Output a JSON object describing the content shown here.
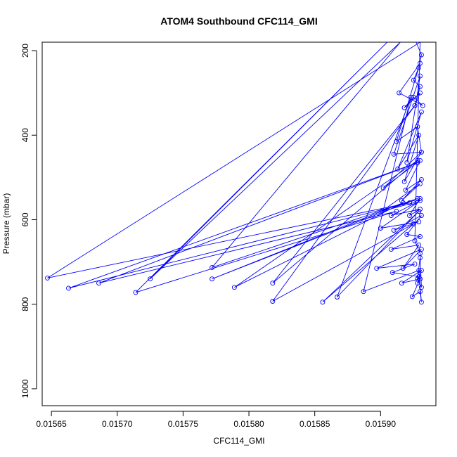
{
  "chart_data": {
    "type": "line",
    "title": "ATOM4 Southbound CFC114_GMI",
    "xlabel": "CFC114_GMI",
    "ylabel": "Pressure (mbar)",
    "xlim": [
      0.015643,
      0.015942
    ],
    "ylim": [
      1040,
      180
    ],
    "y_inverted": true,
    "x_ticks": [
      0.01565,
      0.0157,
      0.01575,
      0.0158,
      0.01585,
      0.0159
    ],
    "x_tick_labels": [
      "0.01565",
      "0.01570",
      "0.01575",
      "0.01580",
      "0.01585",
      "0.01590"
    ],
    "y_ticks": [
      200,
      400,
      600,
      800,
      1000
    ],
    "y_tick_labels": [
      "200",
      "400",
      "600",
      "800",
      "1000"
    ],
    "line_color": "#0000ff",
    "marker": "open-circle",
    "grid": false,
    "legend": "none",
    "series": [
      {
        "points": [
          [
            0.015927,
            180
          ],
          [
            0.015931,
            210
          ],
          [
            0.015929,
            240
          ],
          [
            0.015925,
            270
          ],
          [
            0.01593,
            285
          ],
          [
            0.015926,
            330
          ],
          [
            0.01593,
            300
          ],
          [
            0.015918,
            335
          ],
          [
            0.015925,
            310
          ],
          [
            0.015932,
            330
          ],
          [
            0.015914,
            300
          ],
          [
            0.01593,
            230
          ],
          [
            0.015912,
            415
          ],
          [
            0.015928,
            380
          ],
          [
            0.015931,
            440
          ],
          [
            0.01591,
            445
          ],
          [
            0.01593,
            260
          ],
          [
            0.01592,
            465
          ],
          [
            0.015931,
            345
          ],
          [
            0.015913,
            480
          ],
          [
            0.015929,
            400
          ],
          [
            0.015918,
            510
          ],
          [
            0.015931,
            440
          ],
          [
            0.015902,
            525
          ],
          [
            0.01593,
            460
          ],
          [
            0.015919,
            530
          ],
          [
            0.015931,
            505
          ],
          [
            0.015916,
            555
          ],
          [
            0.01593,
            515
          ],
          [
            0.015901,
            580
          ],
          [
            0.015925,
            560
          ],
          [
            0.01593,
            550
          ],
          [
            0.015922,
            590
          ],
          [
            0.01593,
            575
          ],
          [
            0.015908,
            590
          ],
          [
            0.01593,
            555
          ],
          [
            0.0159,
            620
          ],
          [
            0.015929,
            605
          ],
          [
            0.01591,
            625
          ],
          [
            0.015931,
            590
          ],
          [
            0.01592,
            635
          ],
          [
            0.01593,
            640
          ],
          [
            0.015908,
            670
          ],
          [
            0.015929,
            660
          ],
          [
            0.015917,
            715
          ],
          [
            0.015931,
            670
          ],
          [
            0.015897,
            715
          ],
          [
            0.015926,
            705
          ],
          [
            0.015909,
            725
          ],
          [
            0.015929,
            735
          ],
          [
            0.015928,
            750
          ],
          [
            0.015931,
            720
          ],
          [
            0.015916,
            750
          ],
          [
            0.01593,
            740
          ],
          [
            0.015924,
            782
          ],
          [
            0.01593,
            770
          ],
          [
            0.015931,
            795
          ],
          [
            0.015929,
            720
          ],
          [
            0.015887,
            770
          ],
          [
            0.015923,
            310
          ],
          [
            0.015867,
            783
          ],
          [
            0.015929,
            580
          ],
          [
            0.015856,
            795
          ],
          [
            0.015925,
            610
          ],
          [
            0.015818,
            793
          ],
          [
            0.015926,
            330
          ],
          [
            0.015818,
            750
          ],
          [
            0.015928,
            460
          ],
          [
            0.015789,
            760
          ],
          [
            0.015917,
            560
          ],
          [
            0.015772,
            740
          ],
          [
            0.015928,
            550
          ],
          [
            0.015772,
            713
          ],
          [
            0.015915,
            180
          ],
          [
            0.015725,
            740
          ],
          [
            0.015905,
            180
          ],
          [
            0.015714,
            772
          ],
          [
            0.015912,
            580
          ],
          [
            0.015686,
            750
          ],
          [
            0.015928,
            465
          ],
          [
            0.015663,
            762
          ],
          [
            0.015922,
            560
          ],
          [
            0.015647,
            738
          ],
          [
            0.01593,
            180
          ],
          [
            0.015926,
            650
          ],
          [
            0.01593,
            680
          ],
          [
            0.015931,
            760
          ],
          [
            0.015928,
            740
          ],
          [
            0.01593,
            690
          ]
        ]
      }
    ]
  }
}
